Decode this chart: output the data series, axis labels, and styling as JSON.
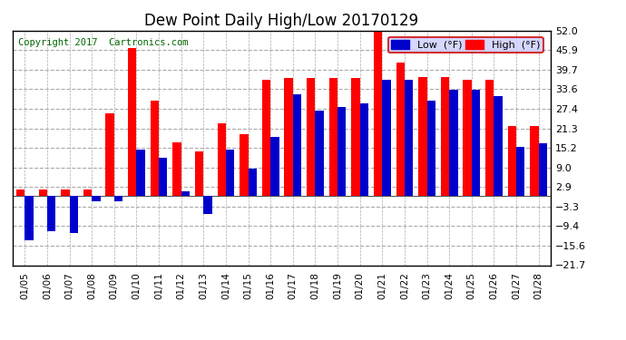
{
  "title": "Dew Point Daily High/Low 20170129",
  "copyright": "Copyright 2017  Cartronics.com",
  "dates": [
    "01/05",
    "01/06",
    "01/07",
    "01/08",
    "01/09",
    "01/10",
    "01/11",
    "01/12",
    "01/13",
    "01/14",
    "01/15",
    "01/16",
    "01/17",
    "01/18",
    "01/19",
    "01/20",
    "01/21",
    "01/22",
    "01/23",
    "01/24",
    "01/25",
    "01/26",
    "01/27",
    "01/28"
  ],
  "high": [
    2.0,
    2.0,
    2.0,
    2.0,
    26.0,
    46.5,
    30.0,
    17.0,
    14.0,
    23.0,
    19.5,
    36.5,
    37.0,
    37.0,
    37.0,
    37.0,
    52.0,
    42.0,
    37.5,
    37.5,
    36.5,
    36.5,
    22.0,
    22.0
  ],
  "low": [
    -14.0,
    -11.0,
    -11.5,
    -1.5,
    -1.5,
    14.5,
    12.0,
    1.5,
    -5.5,
    14.5,
    8.5,
    18.5,
    32.0,
    27.0,
    28.0,
    29.0,
    36.5,
    36.5,
    30.0,
    33.5,
    33.5,
    31.5,
    15.5,
    16.5
  ],
  "ylim_min": -21.7,
  "ylim_max": 52.0,
  "yticks": [
    -21.7,
    -15.6,
    -9.4,
    -3.3,
    2.9,
    9.0,
    15.2,
    21.3,
    27.4,
    33.6,
    39.7,
    45.9,
    52.0
  ],
  "high_color": "#ff0000",
  "low_color": "#0000cc",
  "background_color": "#ffffff",
  "title_fontsize": 12,
  "copyright_fontsize": 7.5,
  "bar_width": 0.38
}
